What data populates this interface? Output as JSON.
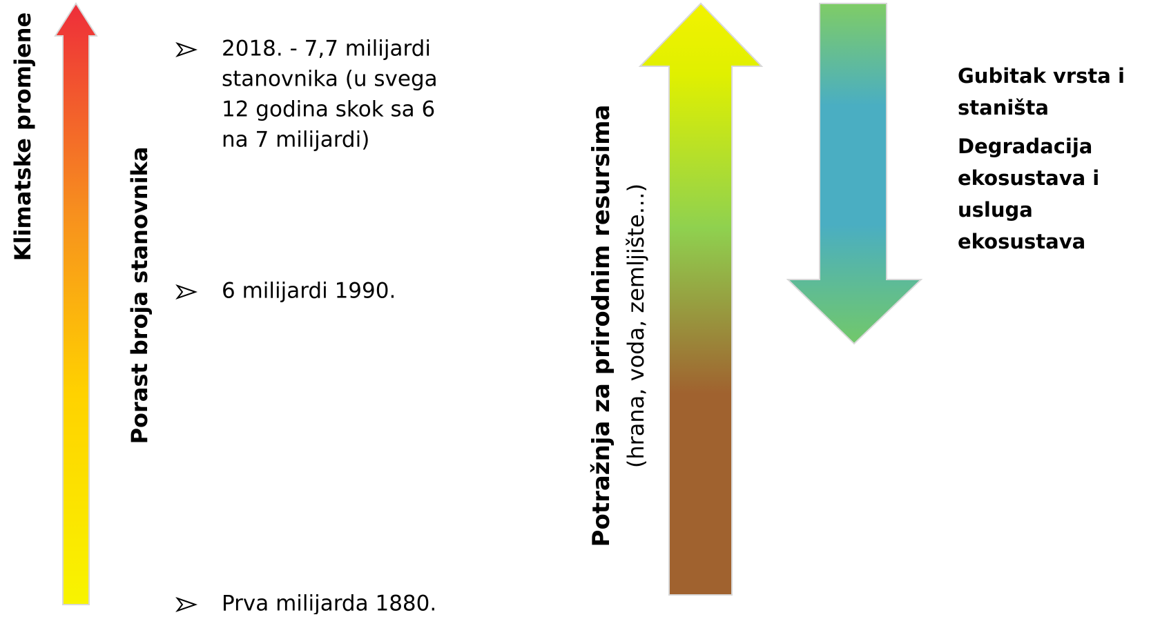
{
  "left_arrow": {
    "label": "Klimatske promjene"
  },
  "population": {
    "label": "Porast broja stanovnika",
    "items": [
      {
        "lines": [
          "2018. - 7,7 milijardi",
          "stanovnika (u svega",
          "12 godina skok sa 6",
          "na 7 milijardi)"
        ]
      },
      {
        "lines": [
          "6 milijardi 1990."
        ]
      },
      {
        "lines": [
          "Prva milijarda  1880."
        ]
      }
    ]
  },
  "demand": {
    "title": "Potražnja za prirodnim resursima",
    "subtitle": "(hrana, voda, zemljište…)"
  },
  "loss": {
    "blocks": [
      {
        "lines": [
          "Gubitak vrsta i",
          "staništa"
        ]
      },
      {
        "lines": [
          "Degradacija",
          "ekosustava i",
          "usluga",
          "ekosustava"
        ]
      }
    ]
  }
}
